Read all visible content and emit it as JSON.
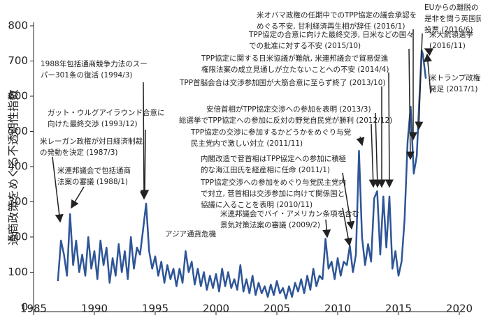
{
  "chart_data": {
    "type": "line",
    "y_label": "通商政策をめぐる不透明性指数",
    "xlim": [
      1985,
      2020
    ],
    "xticks": [
      1985,
      1990,
      1995,
      2000,
      2005,
      2010,
      2015,
      2020
    ],
    "ylim": [
      -12,
      800
    ],
    "yticks": [
      0,
      100,
      200,
      300,
      400,
      500,
      600,
      700,
      800
    ],
    "series": [
      {
        "color": "#2e5597",
        "x": [
          1987,
          1987.25,
          1987.5,
          1987.75,
          1988,
          1988.25,
          1988.5,
          1988.75,
          1989,
          1989.25,
          1989.5,
          1989.75,
          1990,
          1990.25,
          1990.5,
          1990.75,
          1991,
          1991.25,
          1991.5,
          1991.75,
          1992,
          1992.25,
          1992.5,
          1992.75,
          1993,
          1993.25,
          1993.5,
          1993.75,
          1994,
          1994.25,
          1994.5,
          1994.75,
          1995,
          1995.25,
          1995.5,
          1995.75,
          1996,
          1996.25,
          1996.5,
          1996.75,
          1997,
          1997.25,
          1997.5,
          1997.75,
          1998,
          1998.25,
          1998.5,
          1998.75,
          1999,
          1999.25,
          1999.5,
          1999.75,
          2000,
          2000.25,
          2000.5,
          2000.75,
          2001,
          2001.25,
          2001.5,
          2001.75,
          2002,
          2002.25,
          2002.5,
          2002.75,
          2003,
          2003.25,
          2003.5,
          2003.75,
          2004,
          2004.25,
          2004.5,
          2004.75,
          2005,
          2005.25,
          2005.5,
          2005.75,
          2006,
          2006.25,
          2006.5,
          2006.75,
          2007,
          2007.25,
          2007.5,
          2007.75,
          2008,
          2008.25,
          2008.5,
          2008.75,
          2009,
          2009.25,
          2009.5,
          2009.75,
          2010,
          2010.25,
          2010.5,
          2010.75,
          2011,
          2011.25,
          2011.5,
          2011.75,
          2012,
          2012.25,
          2012.5,
          2012.75,
          2013,
          2013.25,
          2013.5,
          2013.75,
          2014,
          2014.25,
          2014.5,
          2014.75,
          2015,
          2015.25,
          2015.5,
          2015.75,
          2016,
          2016.25,
          2016.5,
          2016.75,
          2016.9,
          2017,
          2017.25
        ],
        "values": [
          75,
          190,
          150,
          90,
          265,
          120,
          190,
          100,
          150,
          90,
          200,
          110,
          160,
          80,
          190,
          120,
          170,
          70,
          140,
          90,
          180,
          100,
          160,
          80,
          200,
          110,
          170,
          150,
          220,
          295,
          160,
          110,
          145,
          90,
          130,
          70,
          120,
          80,
          110,
          60,
          110,
          70,
          160,
          100,
          130,
          65,
          110,
          60,
          100,
          50,
          90,
          55,
          95,
          45,
          110,
          60,
          100,
          55,
          80,
          50,
          120,
          45,
          80,
          40,
          90,
          35,
          70,
          40,
          60,
          30,
          65,
          35,
          75,
          40,
          55,
          25,
          60,
          30,
          70,
          45,
          80,
          40,
          90,
          50,
          110,
          60,
          90,
          80,
          195,
          110,
          130,
          80,
          140,
          90,
          130,
          120,
          175,
          100,
          150,
          445,
          200,
          120,
          180,
          130,
          310,
          330,
          150,
          315,
          170,
          315,
          110,
          160,
          90,
          130,
          250,
          470,
          570,
          380,
          430,
          620,
          730,
          720,
          650
        ]
      }
    ],
    "annotations": [
      {
        "lines": [
          "1988年包括通商競争力法のスー",
          "パー301条の復活 (1994/3)"
        ]
      },
      {
        "lines": [
          "ガット・ウルグアイラウンド合意に",
          "向けた最終交渉 (1993/12)"
        ]
      },
      {
        "lines": [
          "米レーガン政権が対日経済制裁",
          "の発動を決定 (1987/3)"
        ]
      },
      {
        "lines": [
          "米連邦議会で包括通商",
          "法案の審議 (1988/1)"
        ]
      },
      {
        "lines": [
          "アジア通貨危機"
        ]
      },
      {
        "lines": [
          "米連邦議会でバイ・アメリカン条項を含む",
          "景気対策法案の審議 (2009/2)"
        ]
      },
      {
        "lines": [
          "TPP協定交渉への参加をめぐり与党民主党内",
          "で対立, 菅首相は交渉参加に向けて関係国と",
          "協議に入ることを表明 (2010/11)"
        ]
      },
      {
        "lines": [
          "内閣改造で菅首相はTPP協定への参加に積極",
          "的な海江田氏を経産相に任命 (2011/1)"
        ]
      },
      {
        "lines": [
          "TPP協定の交渉に参加するかどうかをめぐり与党",
          "民主党内で激しい対立 (2011/11)"
        ]
      },
      {
        "lines": [
          "総選挙でTPP協定への参加に反対の野党自民党が勝利 (2012/12)"
        ]
      },
      {
        "lines": [
          "安倍首相がTPP協定交渉への参加を表明 (2013/3)"
        ]
      },
      {
        "lines": [
          "TPP首脳会合は交渉参加国が大筋合意に至らず終了 (2013/10)"
        ]
      },
      {
        "lines": [
          "TPP協定に関する日米協議が難航, 米連邦議会で貿易促進",
          "権限法案の成立見通しが立たないことへの不安 (2014/4)"
        ]
      },
      {
        "lines": [
          "TPP協定の合意に向けた最終交渉, 日米などの国々",
          "での批准に対する不安 (2015/10)"
        ]
      },
      {
        "lines": [
          "米オバマ政権の任期中でのTPP協定の議会承認を",
          "めぐる不安, 甘利経済再生相が辞任 (2016/1)"
        ]
      },
      {
        "lines": [
          "EUからの離脱の",
          "是非を問う英国民",
          "投票 (2016/6)"
        ]
      },
      {
        "lines": [
          "米大統領選挙",
          "(2016/11)"
        ]
      },
      {
        "lines": [
          "米トランプ政権が",
          "発足 (2017/1)"
        ]
      }
    ]
  }
}
